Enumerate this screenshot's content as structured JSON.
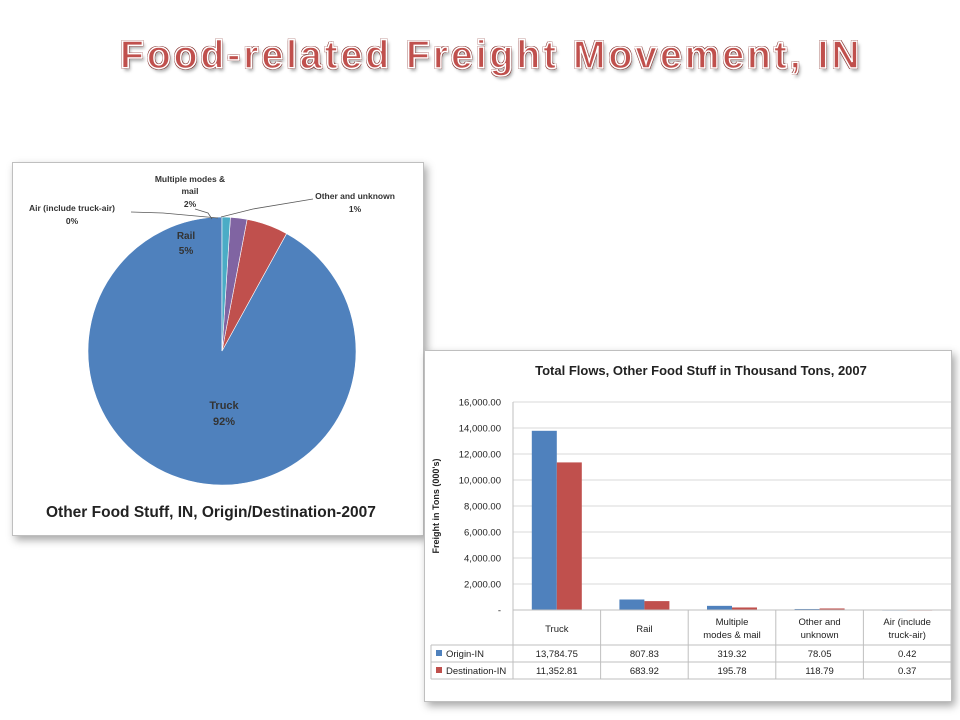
{
  "slide": {
    "title": "Food-related Freight Movement, IN"
  },
  "chart_data": [
    {
      "type": "pie",
      "title": "Other Food Stuff, IN, Origin/Destination-2007",
      "slices": [
        {
          "name": "Truck",
          "label": "92%",
          "value": 92,
          "color": "#4f81bd"
        },
        {
          "name": "Rail",
          "label": "5%",
          "value": 5,
          "color": "#c0504d"
        },
        {
          "name": "Multiple modes & mail",
          "label": "2%",
          "value": 2,
          "color": "#8064a2"
        },
        {
          "name": "Other and unknown",
          "label": "1%",
          "value": 1,
          "color": "#4bacc6"
        },
        {
          "name": "Air (include truck-air)",
          "label": "0%",
          "value": 0,
          "color": "#9bbb59"
        }
      ]
    },
    {
      "type": "bar",
      "title": "Total Flows, Other Food Stuff in Thousand Tons, 2007",
      "ylabel": "Freight in Tons (000's)",
      "xlabel": "",
      "ylim": [
        0,
        16000
      ],
      "yticks": [
        "16,000.00",
        "14,000.00",
        "12,000.00",
        "10,000.00",
        "8,000.00",
        "6,000.00",
        "4,000.00",
        "2,000.00",
        "-"
      ],
      "categories": [
        "Truck",
        "Rail",
        "Multiple modes & mail",
        "Other and unknown",
        "Air (include truck-air)"
      ],
      "series": [
        {
          "name": "Origin-IN",
          "color": "#4f81bd",
          "values": [
            13784.75,
            807.83,
            319.32,
            78.05,
            0.42
          ],
          "labels": [
            "13,784.75",
            "807.83",
            "319.32",
            "78.05",
            "0.42"
          ]
        },
        {
          "name": "Destination-IN",
          "color": "#c0504d",
          "values": [
            11352.81,
            683.92,
            195.78,
            118.79,
            0.37
          ],
          "labels": [
            "11,352.81",
            "683.92",
            "195.78",
            "118.79",
            "0.37"
          ]
        }
      ],
      "grid": true,
      "data_table": true
    }
  ]
}
